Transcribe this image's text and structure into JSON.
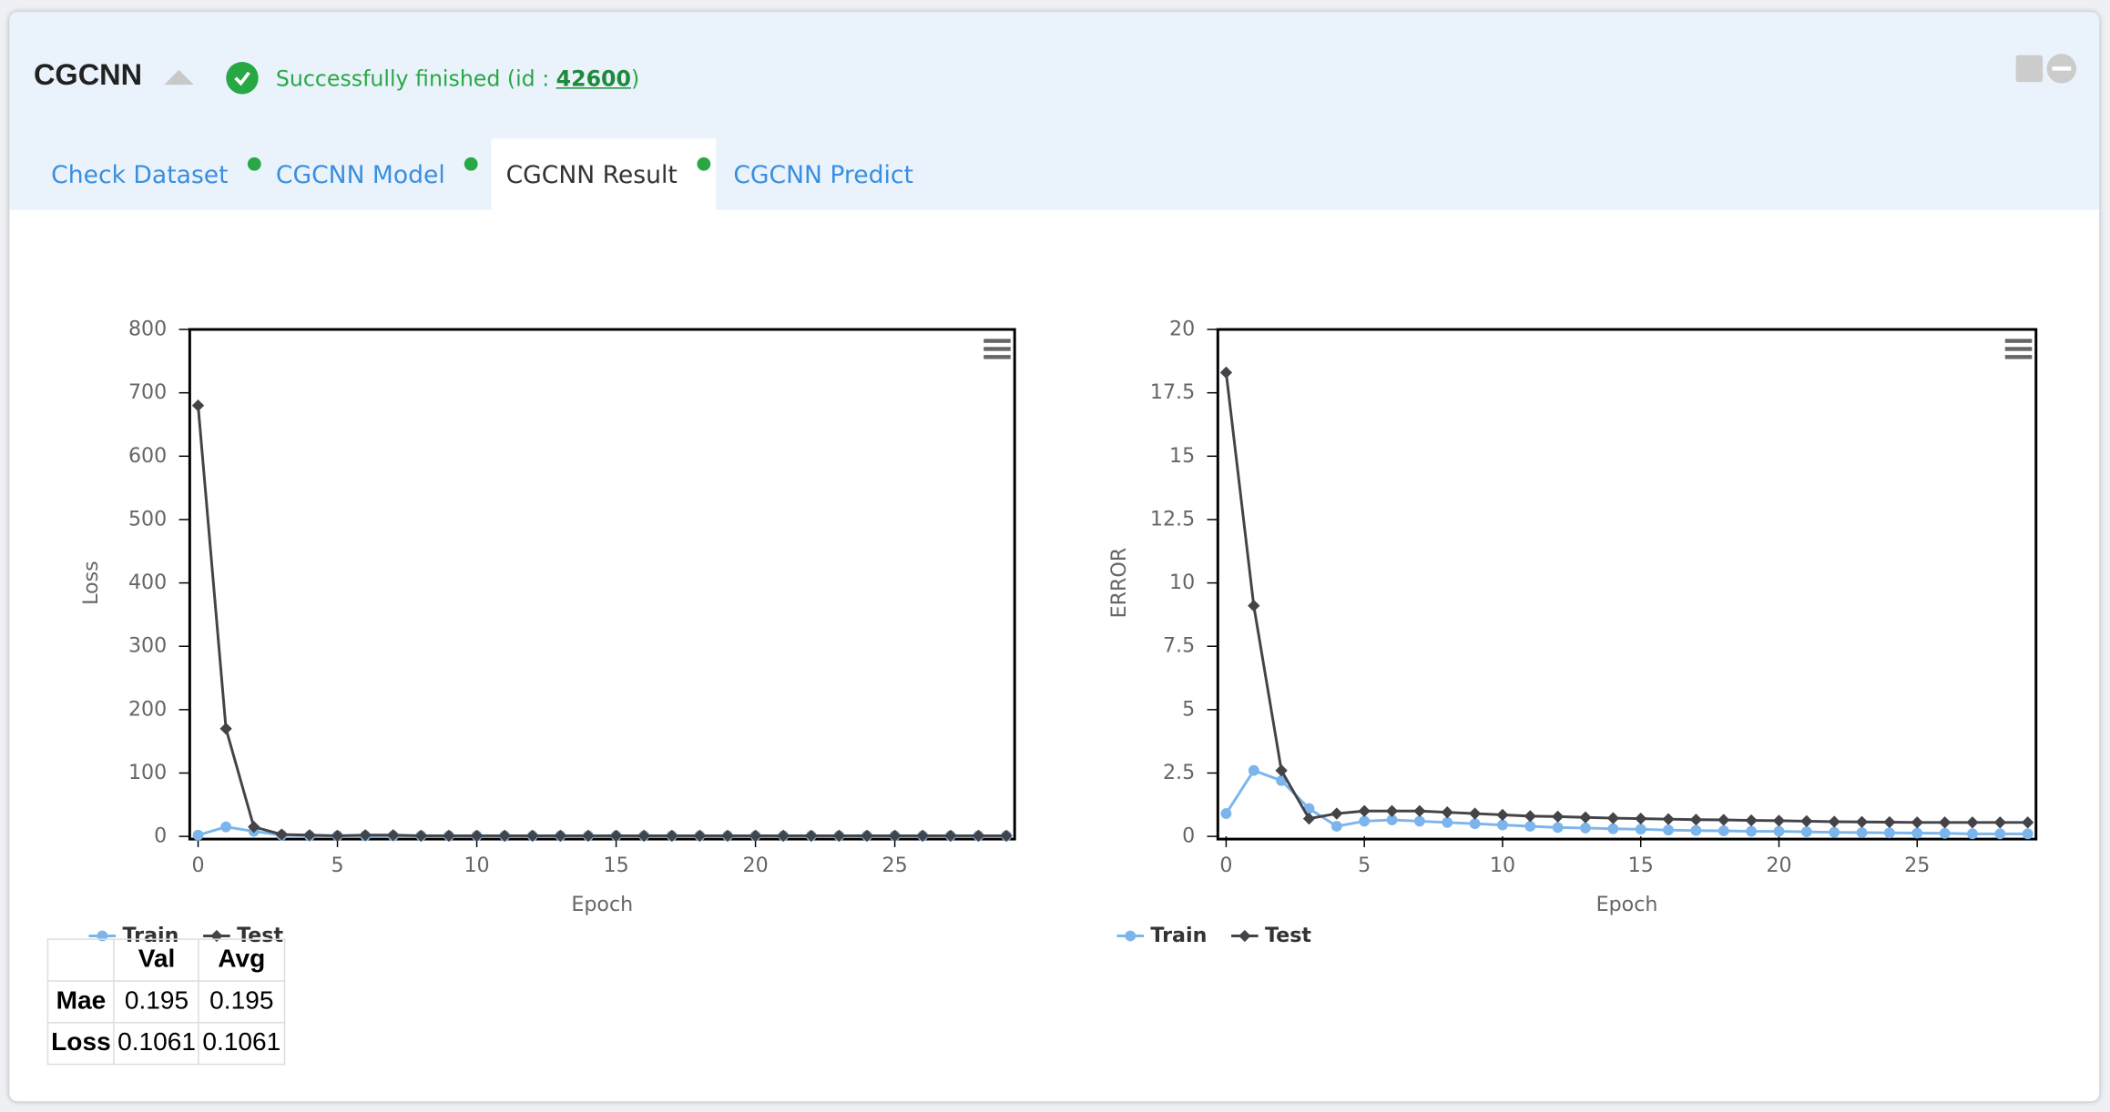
{
  "header": {
    "title": "CGCNN",
    "status": "Successfully finished (id : ",
    "job_id": "42600",
    "status_end": ")"
  },
  "tabs": [
    "Check Dataset",
    "CGCNN Model",
    "CGCNN Result",
    "CGCNN Predict"
  ],
  "chart_data": [
    {
      "type": "line",
      "x_label": "Epoch",
      "y_label": "Loss",
      "x": [
        0,
        1,
        2,
        3,
        4,
        5,
        6,
        7,
        8,
        9,
        10,
        11,
        12,
        13,
        14,
        15,
        16,
        17,
        18,
        19,
        20,
        21,
        22,
        23,
        24,
        25,
        26,
        27,
        28,
        29
      ],
      "xlim": [
        -0.3,
        29.3
      ],
      "xticks": [
        0,
        5,
        10,
        15,
        20,
        25
      ],
      "ylim": [
        0,
        800
      ],
      "yticks": [
        0,
        100,
        200,
        300,
        400,
        500,
        600,
        700,
        800
      ],
      "series": [
        {
          "name": "Train",
          "color": "#7cb5ec",
          "values": [
            2,
            15,
            8,
            2,
            1,
            1,
            1,
            1,
            1,
            1,
            1,
            1,
            1,
            1,
            1,
            1,
            1,
            1,
            1,
            1,
            1,
            1,
            1,
            1,
            1,
            1,
            1,
            1,
            1,
            1
          ]
        },
        {
          "name": "Test",
          "color": "#434348",
          "values": [
            680,
            170,
            15,
            3,
            2,
            1,
            2,
            2,
            1,
            1,
            1,
            1,
            1,
            1,
            1,
            1,
            1,
            1,
            1,
            1,
            1,
            1,
            1,
            1,
            1,
            1,
            1,
            1,
            1,
            1
          ]
        }
      ]
    },
    {
      "type": "line",
      "x_label": "Epoch",
      "y_label": "ERROR",
      "x": [
        0,
        1,
        2,
        3,
        4,
        5,
        6,
        7,
        8,
        9,
        10,
        11,
        12,
        13,
        14,
        15,
        16,
        17,
        18,
        19,
        20,
        21,
        22,
        23,
        24,
        25,
        26,
        27,
        28,
        29
      ],
      "xlim": [
        -0.3,
        29.3
      ],
      "xticks": [
        0,
        5,
        10,
        15,
        20,
        25
      ],
      "ylim": [
        0,
        20
      ],
      "yticks": [
        0,
        2.5,
        5,
        7.5,
        10,
        12.5,
        15,
        17.5,
        20
      ],
      "series": [
        {
          "name": "Train",
          "color": "#7cb5ec",
          "values": [
            0.9,
            2.6,
            2.2,
            1.1,
            0.4,
            0.6,
            0.65,
            0.6,
            0.55,
            0.5,
            0.45,
            0.4,
            0.35,
            0.33,
            0.3,
            0.28,
            0.25,
            0.23,
            0.22,
            0.2,
            0.2,
            0.18,
            0.16,
            0.15,
            0.14,
            0.13,
            0.12,
            0.1,
            0.1,
            0.1
          ]
        },
        {
          "name": "Test",
          "color": "#434348",
          "values": [
            18.3,
            9.1,
            2.6,
            0.7,
            0.9,
            1.0,
            1.0,
            1.0,
            0.95,
            0.9,
            0.85,
            0.8,
            0.78,
            0.75,
            0.72,
            0.7,
            0.68,
            0.66,
            0.65,
            0.63,
            0.62,
            0.6,
            0.58,
            0.57,
            0.56,
            0.55,
            0.55,
            0.55,
            0.55,
            0.55
          ]
        }
      ]
    }
  ],
  "table": {
    "columns": [
      "Val",
      "Avg"
    ],
    "rows": [
      [
        "Mae",
        "0.195",
        "0.195"
      ],
      [
        "Loss",
        "0.1061",
        "0.1061"
      ]
    ]
  }
}
